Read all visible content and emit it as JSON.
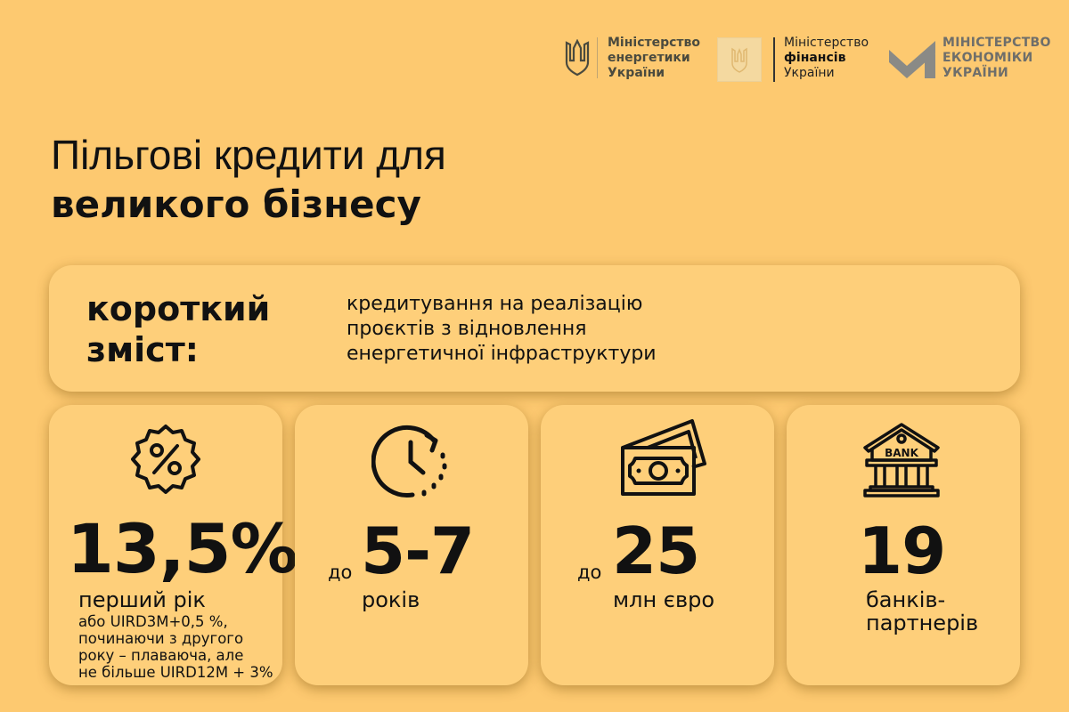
{
  "logos": [
    {
      "name": "energy",
      "lines": [
        "Міністерство",
        "енергетики",
        "України"
      ]
    },
    {
      "name": "finance",
      "lines": [
        "Міністерство",
        "фінансів",
        "України"
      ]
    },
    {
      "name": "economy",
      "lines": [
        "МІНІСТЕРСТВО",
        "ЕКОНОМІКИ",
        "УКРАЇНИ"
      ]
    }
  ],
  "title": {
    "line1": "Пільгові кредити для",
    "line2": "великого бізнесу"
  },
  "summary": {
    "label_line1": "короткий",
    "label_line2": "зміст:",
    "text_lines": [
      "кредитування на реалізацію",
      "проєктів з відновлення",
      "енергетичної інфраструктури"
    ]
  },
  "cards": [
    {
      "icon": "percent-badge-icon",
      "value": "13,5%",
      "sub": "перший рік",
      "details": [
        "або UIRD3M+0,5 %,",
        "починаючи з другого",
        "року – плаваюча, але",
        "не більше UIRD12M + 3%"
      ]
    },
    {
      "icon": "clock-icon",
      "prefix": "до",
      "value": "5-7",
      "sub": "років"
    },
    {
      "icon": "money-icon",
      "prefix": "до",
      "value": "25",
      "sub": "млн євро"
    },
    {
      "icon": "bank-icon",
      "icon_text": "BANK",
      "value": "19",
      "sub_lines": [
        "банків-",
        "партнерів"
      ]
    }
  ],
  "colors": {
    "background": "#fdc970",
    "card": "#fecf7a",
    "text": "#111111"
  }
}
